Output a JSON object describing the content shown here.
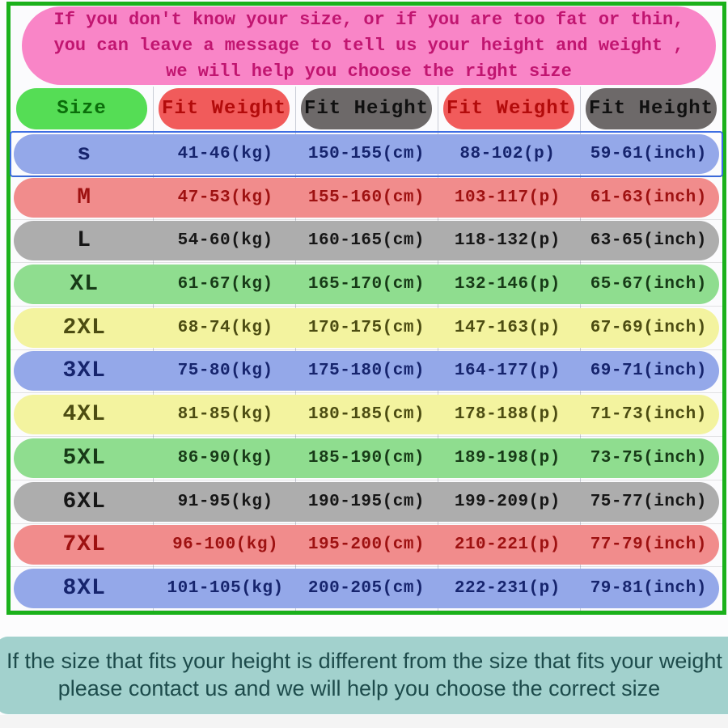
{
  "banner": {
    "lines": [
      "If you don't know your size, or if you are too fat or thin,",
      "you can leave a message to tell us your height and weight ,",
      "we will help you choose the right size"
    ],
    "bg_color": "#f985c7",
    "text_color": "#c11570"
  },
  "table": {
    "border_color": "#1bb11b",
    "headers": [
      {
        "key": "size",
        "label": "Size",
        "style": "green"
      },
      {
        "key": "fit-weight-kg",
        "label": "Fit Weight",
        "style": "red"
      },
      {
        "key": "fit-height-cm",
        "label": "Fit Height",
        "style": "gray"
      },
      {
        "key": "fit-weight-p",
        "label": "Fit Weight",
        "style": "red"
      },
      {
        "key": "fit-height-inch",
        "label": "Fit Height",
        "style": "gray"
      }
    ],
    "column_keys": [
      "size-cell",
      "fit-weight-kg-cell",
      "fit-height-cm-cell",
      "fit-weight-p-cell",
      "fit-height-inch-cell"
    ],
    "rows": [
      {
        "label": "s",
        "color": "blue",
        "selected": true,
        "cells": [
          "41-46(kg)",
          "150-155(cm)",
          "88-102(p)",
          "59-61(inch)"
        ]
      },
      {
        "label": "M",
        "color": "salmon",
        "selected": false,
        "cells": [
          "47-53(kg)",
          "155-160(cm)",
          "103-117(p)",
          "61-63(inch)"
        ]
      },
      {
        "label": "L",
        "color": "gray",
        "selected": false,
        "cells": [
          "54-60(kg)",
          "160-165(cm)",
          "118-132(p)",
          "63-65(inch)"
        ]
      },
      {
        "label": "XL",
        "color": "green",
        "selected": false,
        "cells": [
          "61-67(kg)",
          "165-170(cm)",
          "132-146(p)",
          "65-67(inch)"
        ]
      },
      {
        "label": "2XL",
        "color": "yellow",
        "selected": false,
        "cells": [
          "68-74(kg)",
          "170-175(cm)",
          "147-163(p)",
          "67-69(inch)"
        ]
      },
      {
        "label": "3XL",
        "color": "blue",
        "selected": false,
        "cells": [
          "75-80(kg)",
          "175-180(cm)",
          "164-177(p)",
          "69-71(inch)"
        ]
      },
      {
        "label": "4XL",
        "color": "yellow",
        "selected": false,
        "cells": [
          "81-85(kg)",
          "180-185(cm)",
          "178-188(p)",
          "71-73(inch)"
        ]
      },
      {
        "label": "5XL",
        "color": "green",
        "selected": false,
        "cells": [
          "86-90(kg)",
          "185-190(cm)",
          "189-198(p)",
          "73-75(inch)"
        ]
      },
      {
        "label": "6XL",
        "color": "gray",
        "selected": false,
        "cells": [
          "91-95(kg)",
          "190-195(cm)",
          "199-209(p)",
          "75-77(inch)"
        ]
      },
      {
        "label": "7XL",
        "color": "salmon",
        "selected": false,
        "cells": [
          "96-100(kg)",
          "195-200(cm)",
          "210-221(p)",
          "77-79(inch)"
        ]
      },
      {
        "label": "8XL",
        "color": "blue",
        "selected": false,
        "cells": [
          "101-105(kg)",
          "200-205(cm)",
          "222-231(p)",
          "79-81(inch)"
        ]
      }
    ],
    "palette": {
      "header_green": "#55dd55",
      "header_red": "#f15b5b",
      "header_gray": "#6d6969",
      "row_blue": "#94a8e9",
      "row_salmon": "#f18c8c",
      "row_gray": "#adadad",
      "row_green": "#8fdd8f",
      "row_yellow": "#f3f39f",
      "selection_border": "#3c6de2"
    }
  },
  "footer": {
    "lines": [
      "If the size that fits your height is different from the size that fits your weight",
      "please contact us and we will help you choose the correct size"
    ],
    "bg_color": "#a2d1cd",
    "text_color": "#1d4b4b"
  },
  "chart_data": {
    "type": "table",
    "title": "Size chart",
    "columns": [
      "Size",
      "Fit Weight",
      "Fit Height",
      "Fit Weight",
      "Fit Height"
    ],
    "rows": [
      [
        "s",
        "41-46(kg)",
        "150-155(cm)",
        "88-102(p)",
        "59-61(inch)"
      ],
      [
        "M",
        "47-53(kg)",
        "155-160(cm)",
        "103-117(p)",
        "61-63(inch)"
      ],
      [
        "L",
        "54-60(kg)",
        "160-165(cm)",
        "118-132(p)",
        "63-65(inch)"
      ],
      [
        "XL",
        "61-67(kg)",
        "165-170(cm)",
        "132-146(p)",
        "65-67(inch)"
      ],
      [
        "2XL",
        "68-74(kg)",
        "170-175(cm)",
        "147-163(p)",
        "67-69(inch)"
      ],
      [
        "3XL",
        "75-80(kg)",
        "175-180(cm)",
        "164-177(p)",
        "69-71(inch)"
      ],
      [
        "4XL",
        "81-85(kg)",
        "180-185(cm)",
        "178-188(p)",
        "71-73(inch)"
      ],
      [
        "5XL",
        "86-90(kg)",
        "185-190(cm)",
        "189-198(p)",
        "73-75(inch)"
      ],
      [
        "6XL",
        "91-95(kg)",
        "190-195(cm)",
        "199-209(p)",
        "75-77(inch)"
      ],
      [
        "7XL",
        "96-100(kg)",
        "195-200(cm)",
        "210-221(p)",
        "77-79(inch)"
      ],
      [
        "8XL",
        "101-105(kg)",
        "200-205(cm)",
        "222-231(p)",
        "79-81(inch)"
      ]
    ]
  }
}
